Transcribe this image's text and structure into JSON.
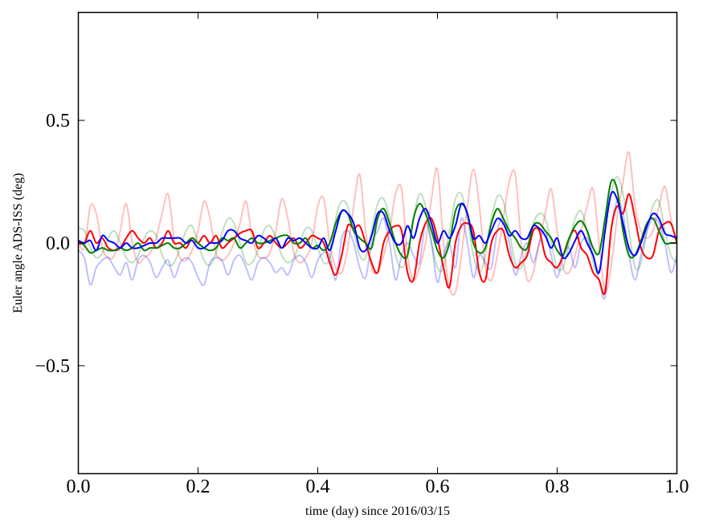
{
  "chart_data": {
    "type": "line",
    "title": "",
    "xlabel": "time (day) since 2016/03/15",
    "ylabel": "Euler angle ADS-ISS (deg)",
    "xlim": [
      0.0,
      1.0
    ],
    "ylim": [
      -0.94,
      0.94
    ],
    "grid": false,
    "legend": "none",
    "xticks": [
      0.0,
      0.2,
      0.4,
      0.6,
      0.8,
      1.0
    ],
    "xtick_labels": [
      "0.0",
      "0.2",
      "0.4",
      "0.6",
      "0.8",
      "1.0"
    ],
    "yticks": [
      -0.5,
      0.0,
      0.5
    ],
    "ytick_labels": [
      "−0.5",
      "0.0",
      "0.5"
    ],
    "x_step": 0.01,
    "series": [
      {
        "color": "#ff0000",
        "alpha": 0.25,
        "values": [
          0.0,
          -0.02,
          0.15,
          0.12,
          -0.02,
          -0.06,
          -0.05,
          0.05,
          0.16,
          0.0,
          -0.08,
          -0.06,
          -0.04,
          0.02,
          0.12,
          0.2,
          0.02,
          -0.06,
          -0.07,
          -0.03,
          0.05,
          0.17,
          0.1,
          -0.04,
          -0.07,
          -0.05,
          0.0,
          0.08,
          0.17,
          0.03,
          -0.05,
          -0.06,
          -0.04,
          0.05,
          0.18,
          0.1,
          -0.04,
          -0.08,
          -0.06,
          0.0,
          0.15,
          0.18,
          0.0,
          -0.1,
          -0.12,
          -0.02,
          0.15,
          0.28,
          0.05,
          -0.1,
          -0.12,
          -0.05,
          0.05,
          0.2,
          0.22,
          -0.05,
          -0.15,
          -0.1,
          0.0,
          0.18,
          0.3,
          0.0,
          -0.18,
          -0.2,
          -0.05,
          0.15,
          0.3,
          0.15,
          -0.1,
          -0.15,
          -0.05,
          0.1,
          0.25,
          0.28,
          0.0,
          -0.15,
          -0.12,
          0.0,
          0.12,
          0.22,
          0.05,
          -0.1,
          -0.12,
          -0.05,
          0.05,
          0.15,
          0.22,
          0.0,
          -0.2,
          -0.1,
          0.1,
          0.25,
          0.37,
          0.15,
          0.05,
          0.02,
          0.05,
          0.15,
          0.23,
          0.1,
          0.0
        ]
      },
      {
        "color": "#008000",
        "alpha": 0.25,
        "values": [
          0.06,
          0.05,
          -0.02,
          -0.06,
          -0.04,
          0.02,
          0.05,
          0.0,
          -0.06,
          -0.08,
          -0.05,
          0.02,
          0.05,
          0.03,
          -0.05,
          -0.09,
          -0.08,
          -0.02,
          0.05,
          0.07,
          0.0,
          -0.07,
          -0.09,
          -0.04,
          0.04,
          0.1,
          0.08,
          0.0,
          -0.08,
          -0.08,
          -0.03,
          0.05,
          0.07,
          0.02,
          -0.05,
          -0.08,
          -0.06,
          0.0,
          0.06,
          0.05,
          -0.02,
          -0.08,
          -0.06,
          0.1,
          0.17,
          0.15,
          0.05,
          -0.05,
          -0.06,
          0.05,
          0.16,
          0.18,
          0.1,
          -0.05,
          -0.1,
          -0.05,
          0.1,
          0.2,
          0.15,
          0.0,
          -0.1,
          -0.1,
          0.05,
          0.18,
          0.2,
          0.1,
          -0.05,
          -0.12,
          -0.05,
          0.1,
          0.19,
          0.17,
          0.05,
          -0.08,
          -0.1,
          -0.02,
          0.08,
          0.12,
          0.1,
          0.0,
          -0.1,
          -0.1,
          0.0,
          0.1,
          0.13,
          0.05,
          -0.08,
          -0.12,
          0.05,
          0.2,
          0.27,
          0.2,
          0.05,
          -0.1,
          -0.08,
          0.05,
          0.15,
          0.17,
          0.05,
          -0.05,
          -0.08
        ]
      },
      {
        "color": "#0000ff",
        "alpha": 0.25,
        "values": [
          -0.03,
          -0.06,
          -0.17,
          -0.1,
          -0.07,
          -0.06,
          -0.1,
          -0.13,
          -0.08,
          -0.15,
          -0.07,
          -0.05,
          -0.08,
          -0.14,
          -0.1,
          -0.07,
          -0.14,
          -0.08,
          -0.06,
          -0.08,
          -0.14,
          -0.17,
          -0.08,
          -0.06,
          -0.07,
          -0.13,
          -0.07,
          -0.05,
          -0.1,
          -0.15,
          -0.08,
          -0.06,
          -0.08,
          -0.12,
          -0.1,
          -0.13,
          -0.07,
          -0.05,
          -0.08,
          -0.14,
          -0.07,
          -0.04,
          -0.05,
          -0.15,
          0.02,
          0.05,
          0.0,
          -0.1,
          -0.14,
          0.0,
          0.05,
          0.1,
          0.0,
          -0.15,
          -0.05,
          0.0,
          -0.05,
          -0.08,
          0.08,
          0.0,
          -0.16,
          -0.05,
          0.0,
          -0.1,
          0.1,
          0.0,
          -0.14,
          -0.05,
          -0.08,
          -0.1,
          0.05,
          0.1,
          0.0,
          -0.13,
          -0.05,
          0.0,
          -0.08,
          0.0,
          0.05,
          -0.05,
          -0.14,
          -0.05,
          -0.02,
          -0.1,
          0.0,
          0.02,
          -0.05,
          -0.15,
          -0.22,
          0.05,
          0.17,
          0.12,
          -0.05,
          -0.15,
          -0.05,
          0.05,
          0.1,
          0.08,
          0.0,
          -0.12,
          -0.05
        ]
      },
      {
        "color": "#ff0000",
        "alpha": 1,
        "values": [
          0.0,
          0.0,
          0.05,
          0.0,
          0.02,
          -0.02,
          -0.03,
          -0.02,
          0.02,
          0.05,
          0.02,
          0.0,
          0.02,
          -0.02,
          0.0,
          0.05,
          0.0,
          0.0,
          -0.02,
          0.02,
          0.0,
          0.03,
          0.0,
          0.03,
          -0.02,
          0.0,
          0.02,
          0.04,
          0.05,
          0.05,
          -0.02,
          0.0,
          0.03,
          0.0,
          -0.02,
          0.0,
          0.02,
          -0.02,
          0.0,
          0.03,
          0.02,
          0.0,
          -0.08,
          -0.13,
          -0.05,
          0.07,
          0.06,
          0.07,
          0.0,
          -0.08,
          -0.12,
          0.0,
          0.05,
          0.07,
          0.05,
          -0.12,
          -0.15,
          0.0,
          0.08,
          0.1,
          0.02,
          -0.1,
          -0.18,
          0.0,
          0.07,
          0.08,
          0.05,
          -0.12,
          -0.15,
          0.0,
          0.05,
          0.05,
          -0.05,
          -0.1,
          -0.08,
          -0.05,
          0.05,
          0.05,
          -0.05,
          -0.08,
          -0.1,
          -0.05,
          0.02,
          0.05,
          -0.02,
          -0.05,
          -0.12,
          -0.15,
          -0.2,
          0.05,
          0.15,
          0.12,
          0.2,
          0.1,
          -0.02,
          -0.06,
          -0.05,
          0.05,
          0.08,
          0.08,
          0.0
        ]
      },
      {
        "color": "#008000",
        "alpha": 1,
        "values": [
          0.01,
          -0.01,
          -0.04,
          -0.03,
          -0.02,
          -0.03,
          -0.03,
          -0.02,
          -0.03,
          -0.02,
          0.0,
          -0.03,
          -0.02,
          -0.02,
          -0.01,
          0.0,
          -0.02,
          -0.02,
          0.0,
          0.02,
          0.0,
          -0.02,
          -0.03,
          -0.02,
          0.02,
          0.01,
          0.02,
          -0.02,
          0.0,
          0.02,
          0.0,
          0.0,
          0.01,
          0.02,
          0.03,
          0.03,
          0.0,
          0.0,
          0.02,
          -0.02,
          -0.01,
          -0.03,
          0.0,
          0.08,
          0.13,
          0.12,
          0.05,
          0.02,
          0.0,
          -0.02,
          0.1,
          0.14,
          0.08,
          0.0,
          -0.05,
          -0.05,
          0.1,
          0.16,
          0.12,
          0.05,
          -0.03,
          -0.06,
          0.0,
          0.13,
          0.16,
          0.12,
          0.0,
          -0.04,
          -0.02,
          0.08,
          0.14,
          0.1,
          0.05,
          0.02,
          -0.02,
          -0.02,
          0.07,
          0.08,
          0.05,
          0.02,
          -0.03,
          -0.05,
          0.02,
          0.07,
          0.09,
          0.05,
          -0.02,
          -0.04,
          0.1,
          0.25,
          0.22,
          0.05,
          -0.05,
          -0.05,
          0.01,
          0.08,
          0.1,
          0.05,
          0.0,
          0.0,
          0.0
        ]
      },
      {
        "color": "#0000ff",
        "alpha": 1,
        "values": [
          0.01,
          0.0,
          0.01,
          -0.03,
          0.03,
          0.01,
          0.0,
          -0.02,
          0.0,
          -0.02,
          -0.02,
          -0.01,
          0.0,
          0.0,
          0.02,
          0.02,
          0.02,
          0.02,
          0.0,
          0.01,
          -0.02,
          -0.02,
          0.0,
          0.0,
          0.01,
          0.05,
          0.05,
          0.02,
          0.01,
          0.0,
          0.03,
          0.02,
          0.0,
          0.02,
          -0.02,
          0.02,
          0.01,
          0.02,
          0.0,
          -0.02,
          -0.02,
          0.02,
          -0.03,
          0.05,
          0.13,
          0.12,
          0.08,
          -0.02,
          -0.03,
          0.03,
          0.12,
          0.12,
          0.05,
          0.0,
          0.0,
          0.07,
          0.02,
          0.1,
          0.14,
          0.08,
          0.0,
          0.05,
          0.02,
          0.07,
          0.16,
          0.12,
          0.02,
          0.03,
          0.0,
          0.05,
          0.1,
          0.08,
          0.03,
          0.05,
          0.02,
          0.02,
          0.07,
          0.06,
          0.03,
          -0.02,
          0.02,
          -0.06,
          -0.04,
          0.01,
          0.05,
          0.0,
          -0.05,
          -0.12,
          0.05,
          0.2,
          0.18,
          0.08,
          -0.02,
          -0.05,
          0.0,
          0.07,
          0.12,
          0.1,
          0.04,
          0.03,
          0.02
        ]
      }
    ]
  }
}
